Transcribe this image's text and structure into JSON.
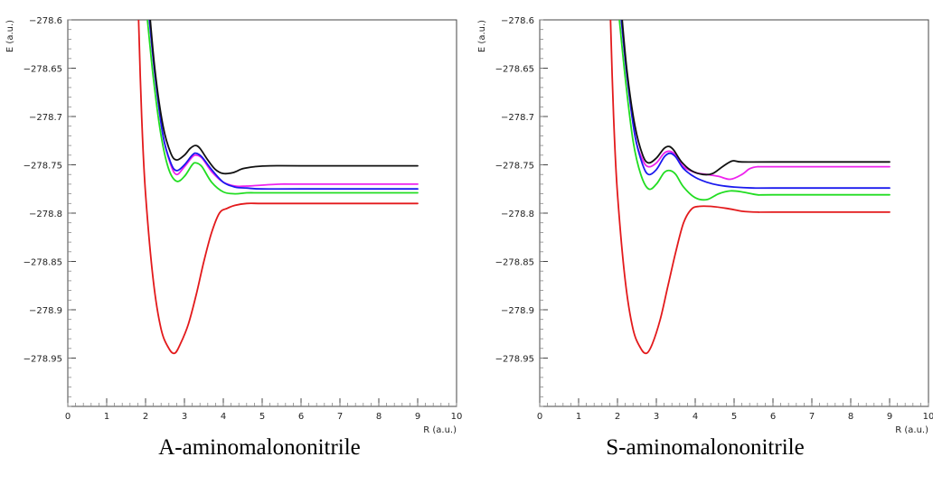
{
  "chart_data": [
    {
      "type": "line",
      "caption": "A-aminomalononitrile",
      "xlabel": "R (a.u.)",
      "ylabel": "E (a.u.)",
      "xlim": [
        0,
        10
      ],
      "ylim": [
        -279.0,
        -278.6
      ],
      "x_ticks": [
        0,
        1,
        2,
        3,
        4,
        5,
        6,
        7,
        8,
        9,
        10
      ],
      "x_tick_labels": [
        "0",
        "1",
        "2",
        "3",
        "4",
        "5",
        "6",
        "7",
        "8",
        "9",
        "10"
      ],
      "y_ticks": [
        -278.6,
        -278.65,
        -278.7,
        -278.75,
        -278.8,
        -278.85,
        -278.9,
        -278.95
      ],
      "y_tick_labels": [
        "−278.6",
        "−278.65",
        "−278.7",
        "−278.75",
        "−278.8",
        "−278.85",
        "−278.9",
        "−278.95"
      ],
      "grid": false,
      "series": [
        {
          "color": "#e31a1c",
          "x": [
            1.82,
            1.9,
            2.0,
            2.2,
            2.4,
            2.6,
            2.75,
            2.9,
            3.1,
            3.3,
            3.5,
            3.7,
            3.9,
            4.1,
            4.3,
            4.6,
            5.0,
            6.0,
            7.0,
            9.0
          ],
          "y": [
            -278.6,
            -278.7,
            -278.78,
            -278.87,
            -278.92,
            -278.94,
            -278.945,
            -278.935,
            -278.915,
            -278.885,
            -278.85,
            -278.82,
            -278.8,
            -278.795,
            -278.792,
            -278.79,
            -278.79,
            -278.79,
            -278.79,
            -278.79
          ]
        },
        {
          "color": "#22dd22",
          "x": [
            2.05,
            2.2,
            2.4,
            2.6,
            2.8,
            3.0,
            3.2,
            3.3,
            3.45,
            3.7,
            4.0,
            4.3,
            4.6,
            5.0,
            6.0,
            9.0
          ],
          "y": [
            -278.6,
            -278.66,
            -278.72,
            -278.755,
            -278.767,
            -278.762,
            -278.75,
            -278.748,
            -278.752,
            -278.768,
            -278.778,
            -278.78,
            -278.779,
            -278.779,
            -278.779,
            -278.779
          ]
        },
        {
          "color": "#ee22ee",
          "x": [
            2.1,
            2.25,
            2.45,
            2.65,
            2.8,
            3.0,
            3.2,
            3.3,
            3.45,
            3.7,
            4.0,
            4.3,
            4.6,
            5.0,
            5.5,
            6.0,
            9.0
          ],
          "y": [
            -278.6,
            -278.66,
            -278.72,
            -278.75,
            -278.76,
            -278.752,
            -278.742,
            -278.74,
            -278.743,
            -278.757,
            -278.768,
            -278.772,
            -278.772,
            -278.771,
            -278.77,
            -278.77,
            -278.77
          ]
        },
        {
          "color": "#1a1aee",
          "x": [
            2.1,
            2.25,
            2.45,
            2.65,
            2.8,
            3.0,
            3.2,
            3.3,
            3.45,
            3.7,
            4.0,
            4.3,
            4.6,
            5.0,
            6.0,
            9.0
          ],
          "y": [
            -278.6,
            -278.66,
            -278.72,
            -278.748,
            -278.756,
            -278.75,
            -278.74,
            -278.738,
            -278.742,
            -278.755,
            -278.768,
            -278.773,
            -278.774,
            -278.775,
            -278.775,
            -278.775
          ]
        },
        {
          "color": "#111111",
          "x": [
            2.12,
            2.25,
            2.45,
            2.65,
            2.8,
            3.0,
            3.15,
            3.28,
            3.4,
            3.6,
            3.8,
            4.0,
            4.25,
            4.5,
            4.8,
            5.2,
            6.0,
            9.0
          ],
          "y": [
            -278.6,
            -278.655,
            -278.71,
            -278.738,
            -278.745,
            -278.74,
            -278.733,
            -278.73,
            -278.733,
            -278.745,
            -278.755,
            -278.759,
            -278.758,
            -278.754,
            -278.752,
            -278.751,
            -278.751,
            -278.751
          ]
        }
      ]
    },
    {
      "type": "line",
      "caption": "S-aminomalononitrile",
      "xlabel": "R (a.u.)",
      "ylabel": "E (a.u.)",
      "xlim": [
        0,
        10
      ],
      "ylim": [
        -279.0,
        -278.6
      ],
      "x_ticks": [
        0,
        1,
        2,
        3,
        4,
        5,
        6,
        7,
        8,
        9,
        10
      ],
      "x_tick_labels": [
        "0",
        "1",
        "2",
        "3",
        "4",
        "5",
        "6",
        "7",
        "8",
        "9",
        "10"
      ],
      "y_ticks": [
        -278.6,
        -278.65,
        -278.7,
        -278.75,
        -278.8,
        -278.85,
        -278.9,
        -278.95
      ],
      "y_tick_labels": [
        "−278.6",
        "−278.65",
        "−278.7",
        "−278.75",
        "−278.8",
        "−278.85",
        "−278.9",
        "−278.95"
      ],
      "grid": false,
      "series": [
        {
          "color": "#e31a1c",
          "x": [
            1.82,
            1.9,
            2.0,
            2.2,
            2.4,
            2.6,
            2.75,
            2.9,
            3.1,
            3.3,
            3.5,
            3.7,
            3.9,
            4.1,
            4.4,
            4.8,
            5.2,
            5.6,
            6.0,
            9.0
          ],
          "y": [
            -278.6,
            -278.7,
            -278.78,
            -278.87,
            -278.92,
            -278.94,
            -278.945,
            -278.935,
            -278.91,
            -278.875,
            -278.84,
            -278.81,
            -278.796,
            -278.793,
            -278.793,
            -278.795,
            -278.798,
            -278.799,
            -278.799,
            -278.799
          ]
        },
        {
          "color": "#22dd22",
          "x": [
            2.05,
            2.2,
            2.4,
            2.6,
            2.8,
            3.0,
            3.2,
            3.35,
            3.5,
            3.7,
            4.0,
            4.3,
            4.6,
            4.9,
            5.2,
            5.6,
            6.0,
            9.0
          ],
          "y": [
            -278.6,
            -278.66,
            -278.725,
            -278.76,
            -278.775,
            -278.77,
            -278.758,
            -278.756,
            -278.76,
            -278.773,
            -278.784,
            -278.786,
            -278.78,
            -278.777,
            -278.778,
            -278.781,
            -278.781,
            -278.781
          ]
        },
        {
          "color": "#ee22ee",
          "x": [
            2.1,
            2.25,
            2.45,
            2.65,
            2.8,
            3.0,
            3.2,
            3.35,
            3.5,
            3.7,
            4.0,
            4.3,
            4.6,
            4.9,
            5.2,
            5.4,
            5.6,
            6.0,
            9.0
          ],
          "y": [
            -278.6,
            -278.66,
            -278.72,
            -278.745,
            -278.752,
            -278.748,
            -278.738,
            -278.736,
            -278.74,
            -278.752,
            -278.758,
            -278.76,
            -278.762,
            -278.765,
            -278.76,
            -278.754,
            -278.752,
            -278.752,
            -278.752
          ]
        },
        {
          "color": "#1a1aee",
          "x": [
            2.1,
            2.25,
            2.45,
            2.65,
            2.8,
            3.0,
            3.2,
            3.35,
            3.5,
            3.7,
            4.0,
            4.3,
            4.6,
            5.0,
            5.5,
            6.0,
            9.0
          ],
          "y": [
            -278.6,
            -278.66,
            -278.72,
            -278.75,
            -278.76,
            -278.755,
            -278.742,
            -278.738,
            -278.742,
            -278.754,
            -278.763,
            -278.768,
            -278.771,
            -278.773,
            -278.774,
            -278.774,
            -278.774
          ]
        },
        {
          "color": "#111111",
          "x": [
            2.12,
            2.25,
            2.45,
            2.65,
            2.8,
            3.0,
            3.2,
            3.33,
            3.45,
            3.65,
            3.9,
            4.2,
            4.45,
            4.7,
            4.95,
            5.2,
            6.0,
            9.0
          ],
          "y": [
            -278.6,
            -278.655,
            -278.71,
            -278.74,
            -278.748,
            -278.743,
            -278.733,
            -278.731,
            -278.735,
            -278.747,
            -278.756,
            -278.76,
            -278.759,
            -278.752,
            -278.746,
            -278.747,
            -278.747,
            -278.747
          ]
        }
      ]
    }
  ]
}
